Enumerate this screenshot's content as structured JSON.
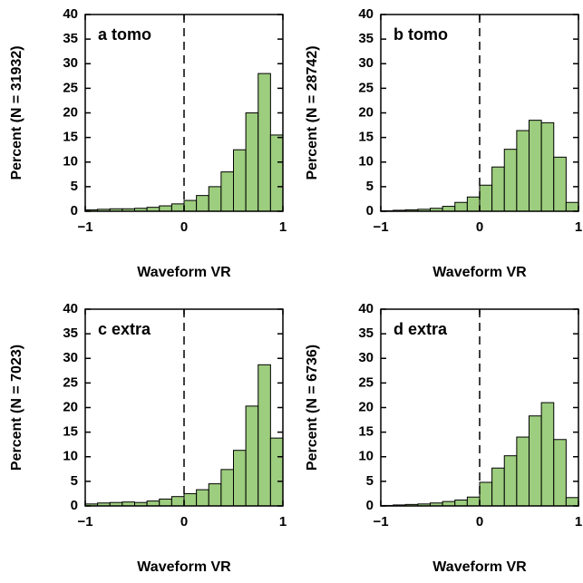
{
  "chart_data": [
    {
      "type": "histogram",
      "title": "a  tomo",
      "x_label": "Waveform VR",
      "y_label": "Percent  (N = 31932)",
      "bins": [
        -1,
        -0.875,
        -0.75,
        -0.625,
        -0.5,
        -0.375,
        -0.25,
        -0.125,
        0,
        0.125,
        0.25,
        0.375,
        0.5,
        0.625,
        0.75,
        0.875,
        1
      ],
      "values": [
        0.3,
        0.4,
        0.5,
        0.5,
        0.6,
        0.8,
        1.1,
        1.5,
        2.2,
        3.2,
        5,
        8,
        12.5,
        20,
        28,
        15.5
      ],
      "color": "#9dcd7e",
      "xlim": [
        -1,
        1
      ],
      "ylim": [
        0,
        40
      ],
      "xticks": [
        {
          "value": -1,
          "label": "−1"
        },
        0,
        1
      ],
      "yticks": [
        0,
        5,
        10,
        15,
        20,
        25,
        30,
        35,
        40
      ],
      "vline_x": 0
    },
    {
      "type": "histogram",
      "title": "b  tomo",
      "x_label": "Waveform VR",
      "y_label": "Percent  (N = 28742)",
      "bins": [
        -1,
        -0.875,
        -0.75,
        -0.625,
        -0.5,
        -0.375,
        -0.25,
        -0.125,
        0,
        0.125,
        0.25,
        0.375,
        0.5,
        0.625,
        0.75,
        0.875,
        1
      ],
      "values": [
        0.1,
        0.2,
        0.3,
        0.4,
        0.6,
        1,
        1.8,
        2.9,
        5.3,
        9,
        12.6,
        16.4,
        18.5,
        18,
        11,
        1.8
      ],
      "color": "#9dcd7e",
      "xlim": [
        -1,
        1
      ],
      "ylim": [
        0,
        40
      ],
      "xticks": [
        {
          "value": -1,
          "label": "−1"
        },
        0,
        1
      ],
      "yticks": [
        0,
        5,
        10,
        15,
        20,
        25,
        30,
        35,
        40
      ],
      "vline_x": 0
    },
    {
      "type": "histogram",
      "title": "c  extra",
      "x_label": "Waveform VR",
      "y_label": "Percent  (N = 7023)",
      "bins": [
        -1,
        -0.875,
        -0.75,
        -0.625,
        -0.5,
        -0.375,
        -0.25,
        -0.125,
        0,
        0.125,
        0.25,
        0.375,
        0.5,
        0.625,
        0.75,
        0.875,
        1
      ],
      "values": [
        0.4,
        0.6,
        0.7,
        0.8,
        0.7,
        1,
        1.4,
        1.9,
        2.5,
        3.3,
        4.5,
        7.4,
        11.3,
        20.3,
        28.7,
        13.8
      ],
      "color": "#9dcd7e",
      "xlim": [
        -1,
        1
      ],
      "ylim": [
        0,
        40
      ],
      "xticks": [
        {
          "value": -1,
          "label": "−1"
        },
        0,
        1
      ],
      "yticks": [
        0,
        5,
        10,
        15,
        20,
        25,
        30,
        35,
        40
      ],
      "vline_x": 0
    },
    {
      "type": "histogram",
      "title": "d  extra",
      "x_label": "Waveform VR",
      "y_label": "Percent  (N = 6736)",
      "bins": [
        -1,
        -0.875,
        -0.75,
        -0.625,
        -0.5,
        -0.375,
        -0.25,
        -0.125,
        0,
        0.125,
        0.25,
        0.375,
        0.5,
        0.625,
        0.75,
        0.875,
        1
      ],
      "values": [
        0.1,
        0.2,
        0.3,
        0.4,
        0.6,
        0.9,
        1.2,
        1.8,
        4.8,
        7.7,
        10.2,
        14,
        18.3,
        21,
        13.5,
        1.7
      ],
      "color": "#9dcd7e",
      "xlim": [
        -1,
        1
      ],
      "ylim": [
        0,
        40
      ],
      "xticks": [
        {
          "value": -1,
          "label": "−1"
        },
        0,
        1
      ],
      "yticks": [
        0,
        5,
        10,
        15,
        20,
        25,
        30,
        35,
        40
      ],
      "vline_x": 0
    }
  ]
}
